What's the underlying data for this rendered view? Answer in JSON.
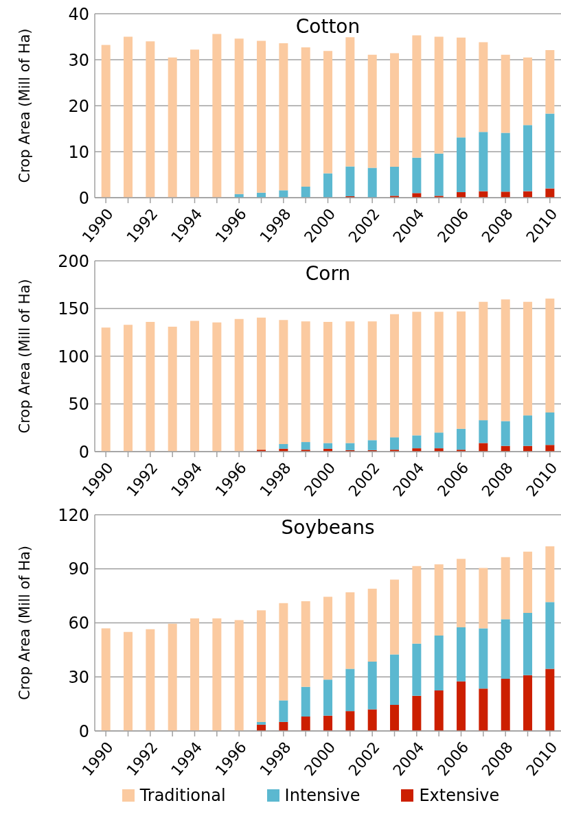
{
  "chart_data": [
    {
      "type": "bar",
      "title": "Cotton",
      "ylabel": "Crop  Area (Mill of Ha)",
      "stacked": true,
      "categories": [
        "1990",
        null,
        "1992",
        null,
        "1994",
        null,
        "1996",
        null,
        "1998",
        null,
        "2000",
        null,
        "2002",
        null,
        "2004",
        null,
        "2006",
        null,
        "2008",
        null,
        "2010"
      ],
      "ylim": [
        0,
        40
      ],
      "yticks": [
        0,
        10,
        20,
        30,
        40
      ],
      "grid": "y",
      "legend": false,
      "series": [
        {
          "color": "#cc1f00",
          "values": [
            0,
            0,
            0,
            0,
            0,
            0,
            0,
            0,
            0,
            0,
            0,
            0.3,
            0,
            0.4,
            1.0,
            0.4,
            1.2,
            1.4,
            1.3,
            1.4,
            2.0
          ]
        },
        {
          "color": "#5bb8d0",
          "values": [
            0,
            0,
            0,
            0,
            0,
            0,
            0.8,
            1.1,
            1.6,
            2.4,
            5.3,
            6.5,
            6.5,
            6.3,
            7.7,
            9.2,
            11.9,
            12.9,
            12.8,
            14.4,
            16.3
          ]
        },
        {
          "color": "#fbcaa0",
          "values": [
            33.2,
            35,
            34,
            30.5,
            32.2,
            35.6,
            33.8,
            33.0,
            32.0,
            30.3,
            26.6,
            28.1,
            24.6,
            24.7,
            26.6,
            25.4,
            21.7,
            19.5,
            17.0,
            14.7,
            13.8
          ]
        }
      ]
    },
    {
      "type": "bar",
      "title": "Corn",
      "ylabel": "Crop Area (Mill of Ha)",
      "stacked": true,
      "categories": [
        "1990",
        null,
        "1992",
        null,
        "1994",
        null,
        "1996",
        null,
        "1998",
        null,
        "2000",
        null,
        "2002",
        null,
        "2004",
        null,
        "2006",
        null,
        "2008",
        null,
        "2010"
      ],
      "ylim": [
        0,
        200
      ],
      "yticks": [
        0,
        50,
        100,
        150,
        200
      ],
      "grid": "y",
      "legend": false,
      "series": [
        {
          "color": "#cc1f00",
          "values": [
            0,
            0,
            0,
            0,
            0,
            0,
            0,
            2,
            3,
            2,
            3,
            1.5,
            1.5,
            2,
            3.5,
            3.5,
            2,
            9,
            6,
            6,
            7
          ]
        },
        {
          "color": "#5bb8d0",
          "values": [
            0,
            0,
            0,
            0,
            0,
            0,
            0,
            0,
            5,
            8,
            6,
            7.5,
            10.5,
            13,
            13.5,
            16.5,
            22,
            24,
            26,
            32,
            34
          ]
        },
        {
          "color": "#fbcaa0",
          "values": [
            130,
            133,
            136,
            131,
            137,
            135.5,
            139,
            138.5,
            130,
            126.5,
            127,
            127.5,
            124.5,
            129,
            129.5,
            126.5,
            123,
            124,
            127.5,
            119,
            119.5
          ]
        }
      ]
    },
    {
      "type": "bar",
      "title": "Soybeans",
      "ylabel": "Crop  Area (Mill of Ha)",
      "stacked": true,
      "categories": [
        "1990",
        null,
        "1992",
        null,
        "1994",
        null,
        "1996",
        null,
        "1998",
        null,
        "2000",
        null,
        "2002",
        null,
        "2004",
        null,
        "2006",
        null,
        "2008",
        null,
        "2010"
      ],
      "ylim": [
        0,
        120
      ],
      "yticks": [
        0,
        30,
        60,
        90,
        120
      ],
      "grid": "y",
      "legend": "bottom",
      "series": [
        {
          "name": "Extensive",
          "color": "#cc1f00",
          "values": [
            0,
            0,
            0,
            0,
            0,
            0,
            0,
            3.5,
            5,
            8,
            8.5,
            11,
            12,
            14.5,
            19.5,
            22.5,
            27.5,
            23.5,
            29,
            31,
            34.5
          ]
        },
        {
          "name": "Intensive",
          "color": "#5bb8d0",
          "values": [
            0,
            0,
            0,
            0,
            0,
            0,
            0,
            1.5,
            12,
            16.5,
            20,
            23.5,
            26.5,
            28,
            29,
            30.5,
            30,
            33.5,
            33,
            34.5,
            37
          ]
        },
        {
          "name": "Traditional",
          "color": "#fbcaa0",
          "values": [
            57,
            55,
            56.5,
            59.5,
            62.5,
            62.5,
            61.5,
            62,
            54,
            47.5,
            46,
            42.5,
            40.5,
            41.5,
            43,
            39.5,
            38,
            33.5,
            34.5,
            34,
            31
          ]
        }
      ]
    }
  ]
}
